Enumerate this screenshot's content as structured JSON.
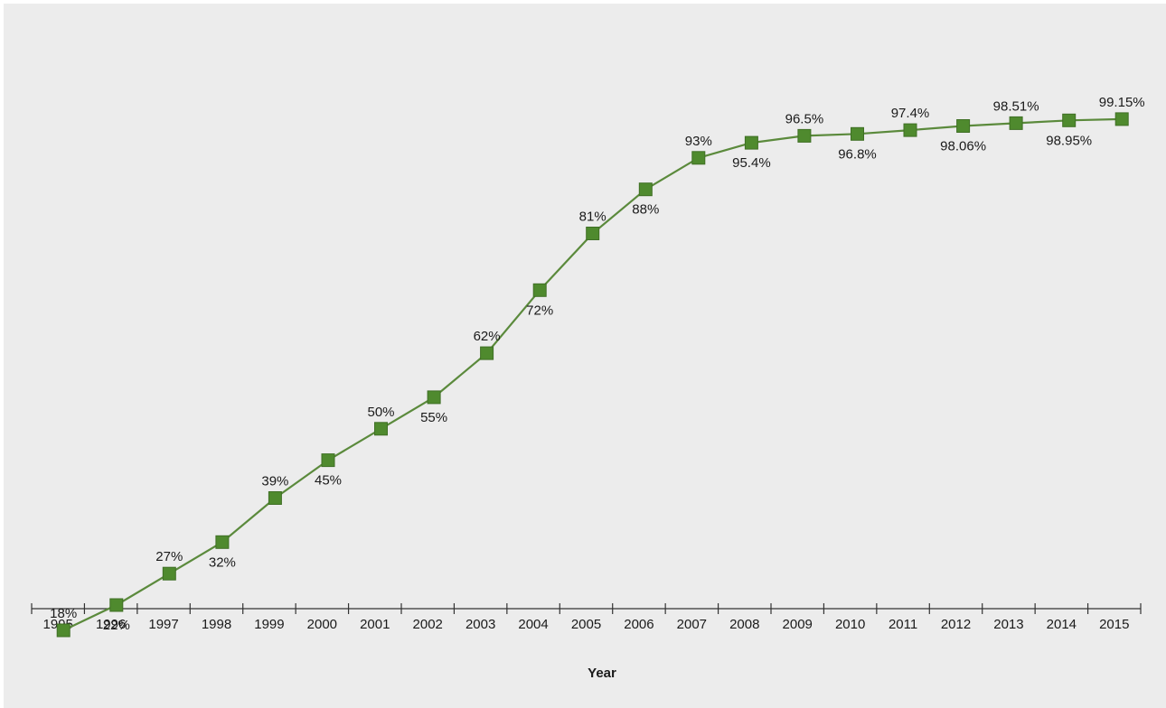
{
  "chart_data": {
    "type": "line",
    "xlabel": "Year",
    "ylabel": "",
    "ylim": [
      0,
      100
    ],
    "grid": false,
    "categories": [
      "1995",
      "1996",
      "1997",
      "1998",
      "1999",
      "2000",
      "2001",
      "2002",
      "2003",
      "2004",
      "2005",
      "2006",
      "2007",
      "2008",
      "2009",
      "2010",
      "2011",
      "2012",
      "2013",
      "2014",
      "2015"
    ],
    "series": [
      {
        "values": [
          18,
          22,
          27,
          32,
          39,
          45,
          50,
          55,
          62,
          72,
          81,
          88,
          93,
          95.4,
          96.5,
          96.8,
          97.4,
          98.06,
          98.51,
          98.95,
          99.15
        ],
        "labels": [
          "18%",
          "22%",
          "27%",
          "32%",
          "39%",
          "45%",
          "50%",
          "55%",
          "62%",
          "72%",
          "81%",
          "88%",
          "93%",
          "95.4%",
          "96.5%",
          "96.8%",
          "97.4%",
          "98.06%",
          "98.51%",
          "98.95%",
          "99.15%"
        ],
        "label_positions": [
          "above",
          "below",
          "above",
          "below",
          "above",
          "below",
          "above",
          "below",
          "above",
          "below",
          "above",
          "below",
          "above",
          "below",
          "above",
          "below",
          "above",
          "below",
          "above",
          "below",
          "above"
        ]
      }
    ],
    "colors": {
      "line": "#5b8a3c",
      "marker": "#4f8a2e",
      "marker_stroke": "#3f6f25",
      "axis": "#333333",
      "background": "#ececec"
    }
  }
}
